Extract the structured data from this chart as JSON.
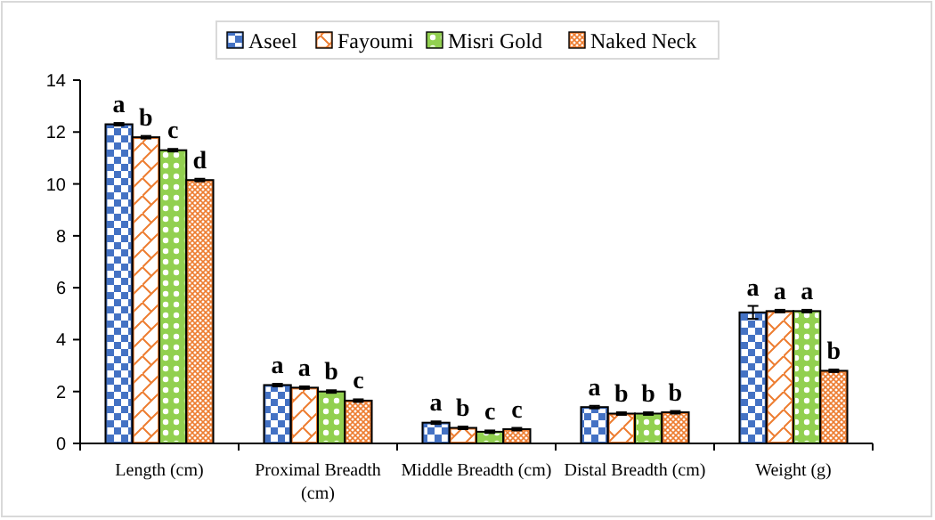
{
  "chart_data": {
    "type": "bar",
    "categories": [
      "Length (cm)",
      "Proximal Breadth (cm)",
      "Middle Breadth (cm)",
      "Distal Breadth (cm)",
      "Weight (g)"
    ],
    "series": [
      {
        "name": "Aseel",
        "color": "#4472c4",
        "values": [
          12.3,
          2.25,
          0.8,
          1.4,
          5.05
        ],
        "errors": [
          0.05,
          0.05,
          0.05,
          0.05,
          0.25
        ],
        "value_labels": [
          "a",
          "a",
          "a",
          "a",
          "a"
        ]
      },
      {
        "name": "Fayoumi",
        "color": "#ed7d31",
        "values": [
          11.8,
          2.15,
          0.6,
          1.15,
          5.1
        ],
        "errors": [
          0.05,
          0.05,
          0.05,
          0.05,
          0.05
        ],
        "value_labels": [
          "b",
          "a",
          "b",
          "b",
          "a"
        ]
      },
      {
        "name": "Misri Gold",
        "color": "#92d050",
        "values": [
          11.3,
          2.0,
          0.45,
          1.15,
          5.1
        ],
        "errors": [
          0.05,
          0.05,
          0.05,
          0.05,
          0.05
        ],
        "value_labels": [
          "c",
          "b",
          "c",
          "b",
          "a"
        ]
      },
      {
        "name": "Naked Neck",
        "color": "#ed7d31",
        "values": [
          10.15,
          1.65,
          0.55,
          1.2,
          2.8
        ],
        "errors": [
          0.05,
          0.05,
          0.05,
          0.05,
          0.05
        ],
        "value_labels": [
          "d",
          "c",
          "c",
          "b",
          "b"
        ]
      }
    ],
    "ylim": [
      0,
      14
    ],
    "yticks": [
      0,
      2,
      4,
      6,
      8,
      10,
      12,
      14
    ],
    "grid": false,
    "legend": "top"
  }
}
